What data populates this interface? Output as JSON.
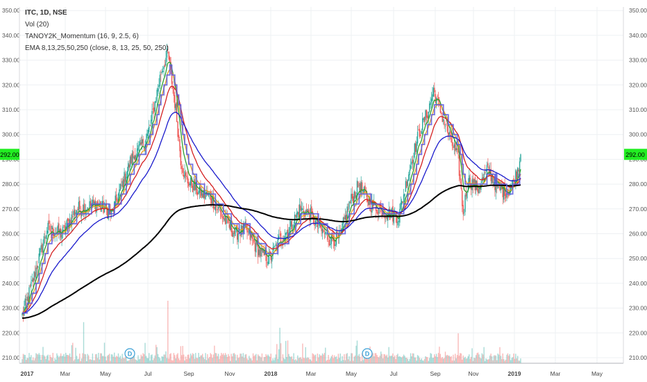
{
  "legend": {
    "symbol": "ITC, 1D, NSE",
    "lines": [
      "Vol (20)",
      "TANOY2K_Momentum (16, 9, 2.5, 6)",
      "EMA 8,13,25,50,250 (close, 8, 13, 25, 50, 250)"
    ]
  },
  "last_price_label": "292.00",
  "colors": {
    "up": "#26a69a",
    "down": "#ef5350",
    "ema8": "#2e9d2e",
    "ema13": "#e6a020",
    "ema25": "#d42020",
    "ema50": "#1a1acc",
    "ema250": "#000000",
    "momentum": "#5a5ae0",
    "price_tag": "#22ee22",
    "grid": "#eef0f3"
  },
  "chart_data": {
    "type": "candlestick",
    "series_names": [
      "Vol (20)",
      "TANOY2K_Momentum (16, 9, 2.5, 6)",
      "EMA 8,13,25,50,250 (close, 8, 13, 25, 50, 250)"
    ],
    "x_tick_labels": [
      "2017",
      "Mar",
      "May",
      "Jul",
      "Sep",
      "Nov",
      "2018",
      "Mar",
      "May",
      "Jul",
      "Sep",
      "Nov",
      "2019",
      "Mar",
      "May"
    ],
    "y_tick_labels": [
      "210.00",
      "220.00",
      "230.00",
      "240.00",
      "250.00",
      "260.00",
      "270.00",
      "280.00",
      "290.00",
      "300.00",
      "310.00",
      "320.00",
      "330.00",
      "340.00",
      "350.00"
    ],
    "ylim": [
      207,
      354
    ],
    "last_price": 292,
    "grid": true,
    "dividend_markers": [
      "D",
      "D"
    ],
    "price_anchors": [
      [
        0,
        227
      ],
      [
        10,
        240
      ],
      [
        25,
        262
      ],
      [
        40,
        260
      ],
      [
        55,
        270
      ],
      [
        75,
        272
      ],
      [
        90,
        268
      ],
      [
        110,
        290
      ],
      [
        125,
        298
      ],
      [
        130,
        305
      ],
      [
        140,
        325
      ],
      [
        147,
        333
      ],
      [
        155,
        310
      ],
      [
        160,
        290
      ],
      [
        165,
        282
      ],
      [
        180,
        276
      ],
      [
        190,
        275
      ],
      [
        205,
        265
      ],
      [
        215,
        260
      ],
      [
        225,
        262
      ],
      [
        240,
        252
      ],
      [
        250,
        250
      ],
      [
        260,
        258
      ],
      [
        270,
        262
      ],
      [
        280,
        270
      ],
      [
        290,
        268
      ],
      [
        300,
        262
      ],
      [
        310,
        258
      ],
      [
        320,
        258
      ],
      [
        330,
        272
      ],
      [
        340,
        280
      ],
      [
        350,
        272
      ],
      [
        360,
        270
      ],
      [
        370,
        268
      ],
      [
        380,
        267
      ],
      [
        390,
        285
      ],
      [
        400,
        300
      ],
      [
        410,
        310
      ],
      [
        415,
        318
      ],
      [
        420,
        312
      ],
      [
        430,
        300
      ],
      [
        440,
        290
      ],
      [
        445,
        268
      ],
      [
        450,
        282
      ],
      [
        460,
        278
      ],
      [
        470,
        286
      ],
      [
        480,
        278
      ],
      [
        490,
        277
      ],
      [
        495,
        280
      ],
      [
        500,
        286
      ],
      [
        503,
        292
      ]
    ],
    "ema_periods": [
      8,
      13,
      25,
      50,
      250
    ],
    "volume_scale_note": "relative volume bars along the bottom of the price pane"
  }
}
